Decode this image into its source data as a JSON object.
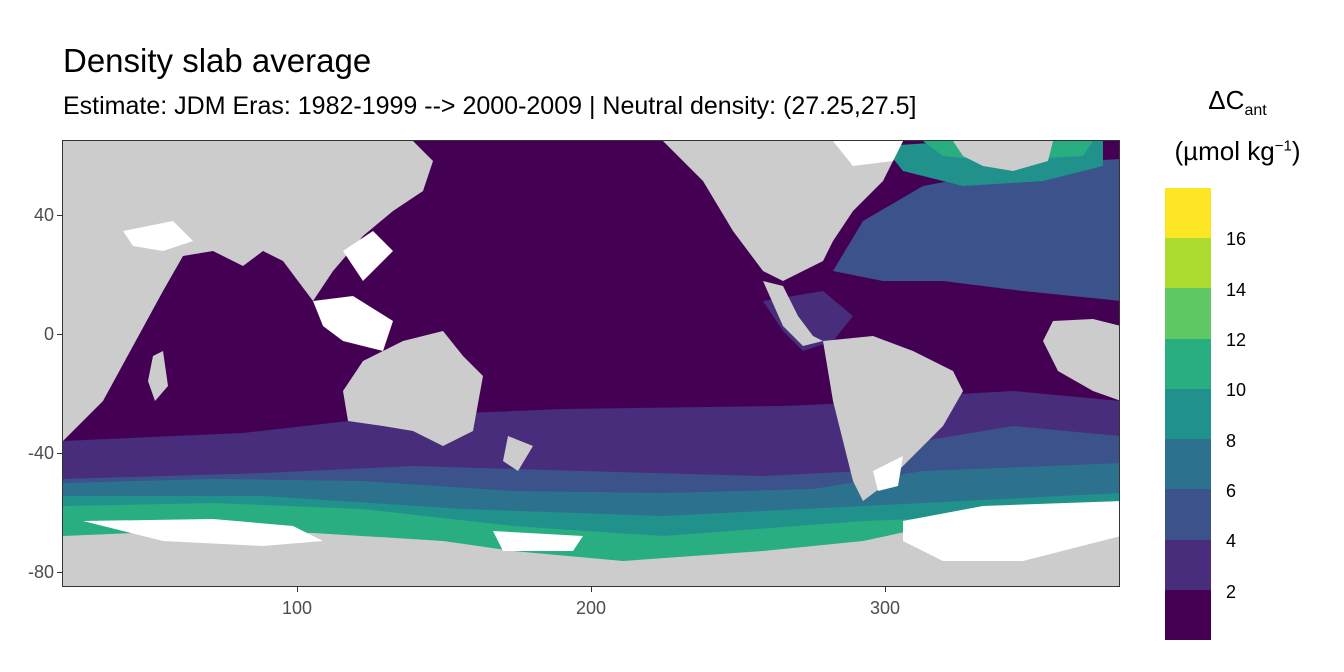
{
  "title": "Density slab average",
  "subtitle": "Estimate: JDM Eras: 1982-1999 --> 2000-2009 | Neutral density: (27.25,27.5]",
  "legend": {
    "title_main": "ΔC",
    "title_sub": "ant",
    "unit_prefix": "(µmol kg",
    "unit_sup": "−1",
    "unit_suffix": ")",
    "breaks": [
      "16",
      "14",
      "12",
      "10",
      "8",
      "6",
      "4",
      "2"
    ],
    "colors": [
      "#fde725",
      "#addc30",
      "#5ec962",
      "#28ae80",
      "#21918c",
      "#2c728e",
      "#3b528b",
      "#472d7b",
      "#440154"
    ]
  },
  "colors": {
    "land": "#cccccc",
    "nodata": "#ffffff"
  },
  "chart_data": {
    "type": "heatmap",
    "title": "Density slab average",
    "subtitle": "Estimate: JDM Eras: 1982-1999 --> 2000-2009 | Neutral density: (27.25,27.5]",
    "xlim": [
      20,
      380
    ],
    "ylim": [
      -85,
      65
    ],
    "x_ticks": [
      "100",
      "200",
      "300"
    ],
    "y_ticks": [
      "40",
      "0",
      "-40",
      "-80"
    ],
    "x_tick_values": [
      100,
      200,
      300
    ],
    "y_tick_values": [
      40,
      0,
      -40,
      -80
    ],
    "legend_title": "ΔCant (µmol kg−1)",
    "legend_breaks": [
      2,
      4,
      6,
      8,
      10,
      12,
      14,
      16
    ]
  }
}
